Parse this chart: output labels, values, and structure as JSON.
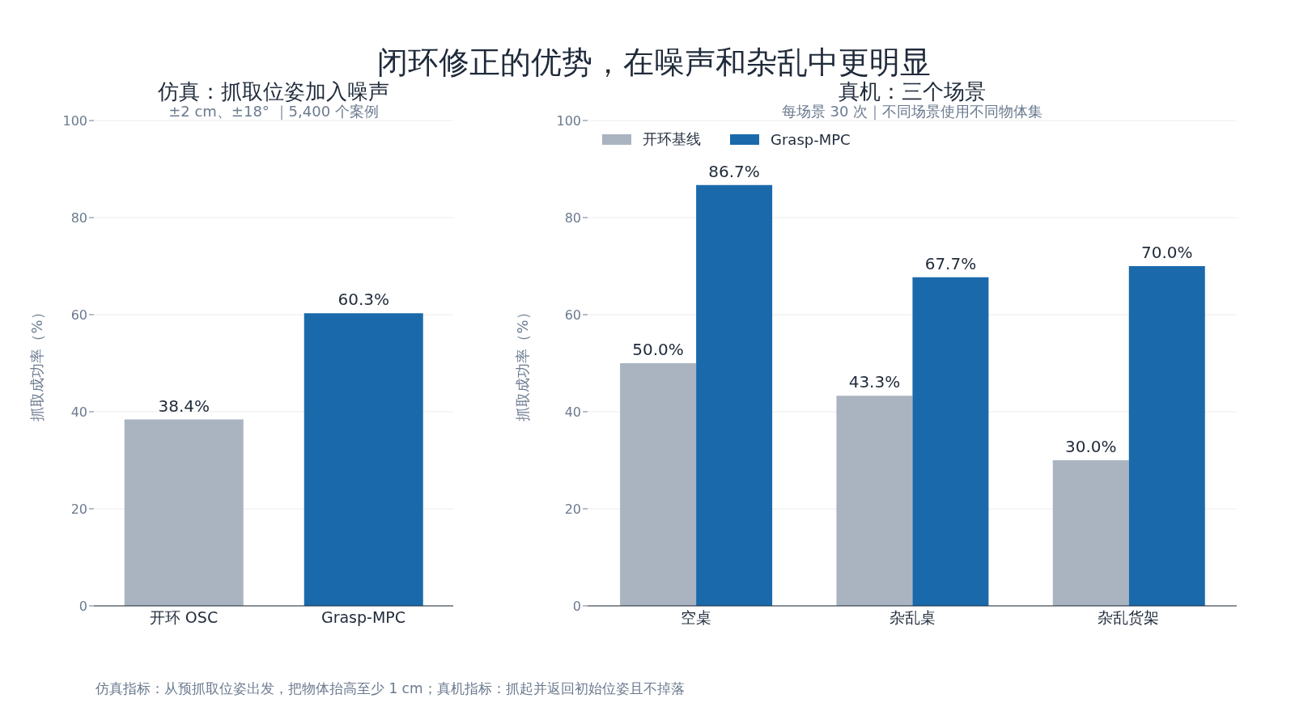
{
  "chart_data": [
    {
      "type": "bar",
      "title": "仿真：抓取位姿加入噪声",
      "subtitle": "±2 cm、±18° ｜5,400 个案例",
      "ylabel": "抓取成功率（%）",
      "categories": [
        "开环 OSC",
        "Grasp-MPC"
      ],
      "values": [
        38.4,
        60.3
      ],
      "colors": [
        "#aab4c0",
        "#1a6aab"
      ],
      "value_labels": [
        "38.4%",
        "60.3%"
      ],
      "ylim": [
        0,
        100
      ],
      "yticks": [
        0,
        20,
        40,
        60,
        80,
        100
      ],
      "grid": "y",
      "annotations": [
        "闭环修正的优势，在噪声和杂乱中更明显",
        "仿真指标：从预抓取位姿出发，把物体抬高至少 1 cm；真机指标：抓起并返回初始位姿且不掉落"
      ]
    },
    {
      "type": "bar",
      "title": "真机：三个场景",
      "subtitle": "每场景 30 次｜不同场景使用不同物体集",
      "ylabel": "抓取成功率（%）",
      "categories": [
        "空桌",
        "杂乱桌",
        "杂乱货架"
      ],
      "series": [
        {
          "name": "开环基线",
          "color": "#aab4c0",
          "values": [
            50.0,
            43.3,
            30.0
          ],
          "value_labels": [
            "50.0%",
            "43.3%",
            "30.0%"
          ]
        },
        {
          "name": "Grasp-MPC",
          "color": "#1a6aab",
          "values": [
            86.7,
            67.7,
            70.0
          ],
          "value_labels": [
            "86.7%",
            "67.7%",
            "70.0%"
          ]
        }
      ],
      "ylim": [
        0,
        100
      ],
      "yticks": [
        0,
        20,
        40,
        60,
        80,
        100
      ],
      "grid": "y",
      "legend": "top left"
    }
  ]
}
